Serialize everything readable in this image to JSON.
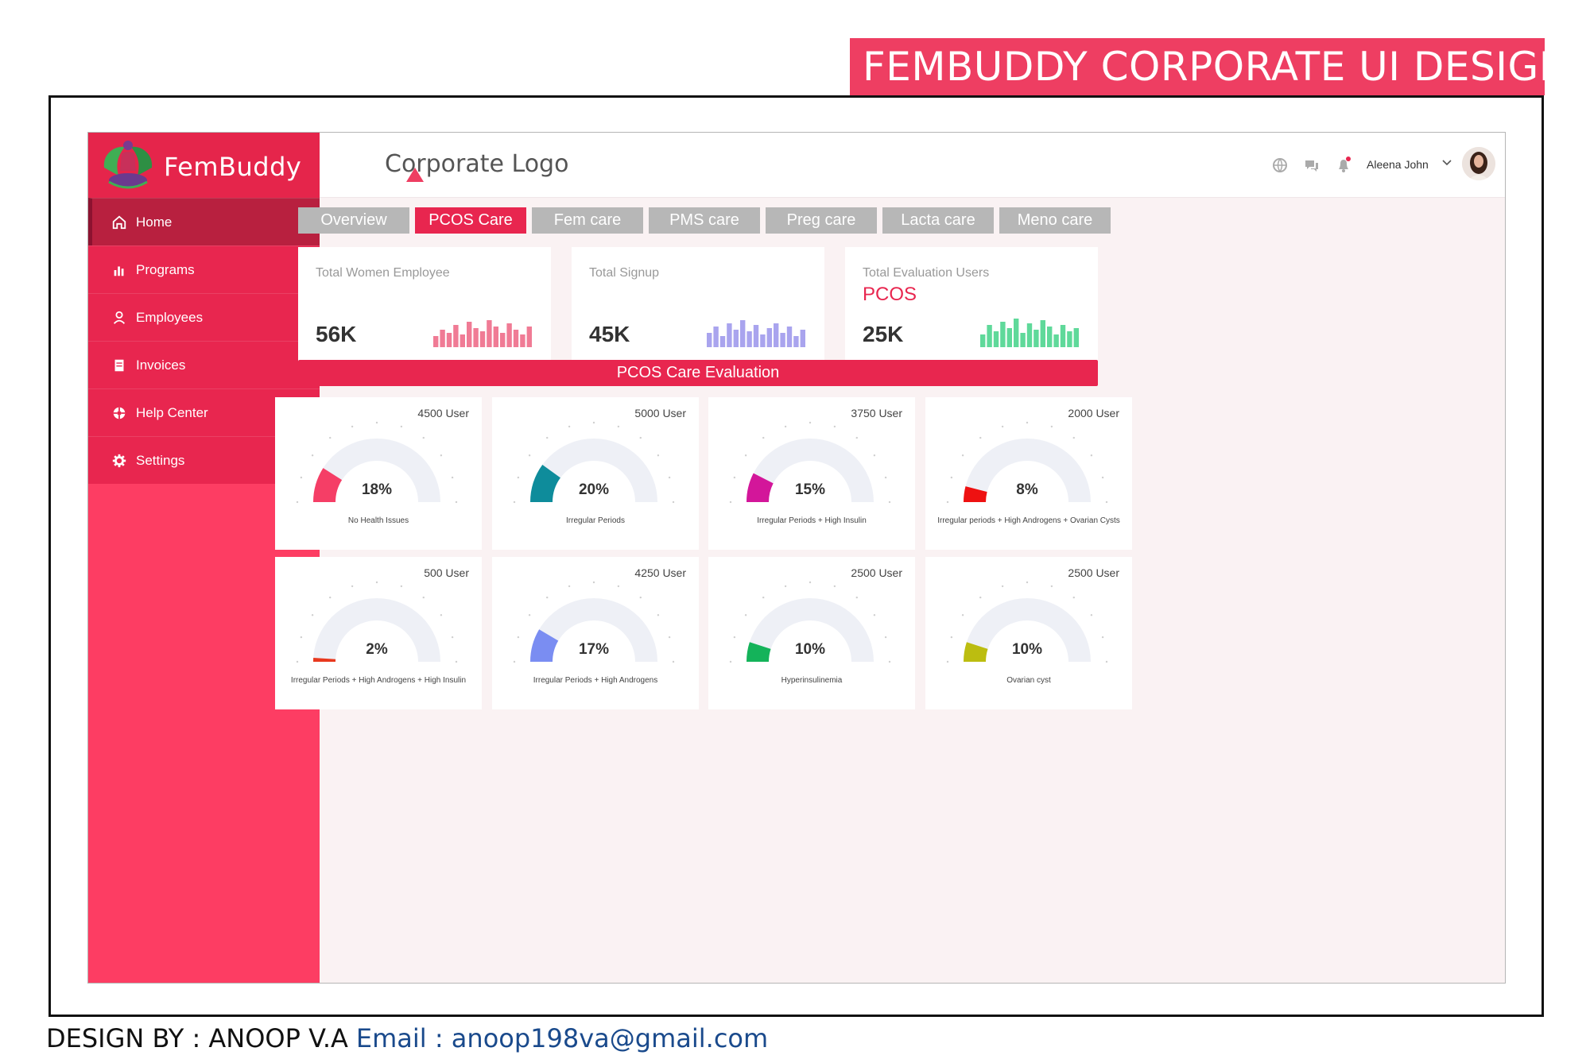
{
  "banner": {
    "title": "FEMBUDDY CORPORATE  UI DESIGN"
  },
  "brand": {
    "name": "FemBuddy"
  },
  "sidebar": {
    "items": [
      {
        "label": "Home",
        "icon": "home-icon",
        "active": true
      },
      {
        "label": "Programs",
        "icon": "bar-chart-icon",
        "active": false
      },
      {
        "label": "Employees",
        "icon": "user-icon",
        "active": false
      },
      {
        "label": "Invoices",
        "icon": "invoice-icon",
        "active": false
      },
      {
        "label": "Help Center",
        "icon": "help-icon",
        "active": false
      },
      {
        "label": "Settings",
        "icon": "gear-icon",
        "active": false
      }
    ]
  },
  "topbar": {
    "corporate_logo": "Corporate Logo",
    "user_name": "Aleena John",
    "icons": [
      "globe-icon",
      "chat-icon",
      "bell-icon"
    ]
  },
  "tabs": [
    {
      "label": "Overview",
      "active": false
    },
    {
      "label": "PCOS Care",
      "active": true
    },
    {
      "label": "Fem care",
      "active": false
    },
    {
      "label": "PMS care",
      "active": false
    },
    {
      "label": "Preg care",
      "active": false
    },
    {
      "label": "Lacta care",
      "active": false
    },
    {
      "label": "Meno care",
      "active": false
    }
  ],
  "stats": [
    {
      "label": "Total Women Employee",
      "sub": "",
      "value": "56K",
      "color": "#f07b95"
    },
    {
      "label": "Total Signup",
      "sub": "",
      "value": "45K",
      "color": "#a9a4ee"
    },
    {
      "label": "Total Evaluation Users",
      "sub": "PCOS",
      "value": "25K",
      "color": "#5fd99a"
    }
  ],
  "evaluation": {
    "title": "PCOS Care Evaluation"
  },
  "gauges": [
    {
      "users": "4500 User",
      "percent": 18,
      "pct_label": "18%",
      "label": "No Health Issues",
      "color": "#f53e66"
    },
    {
      "users": "5000 User",
      "percent": 20,
      "pct_label": "20%",
      "label": "Irregular Periods",
      "color": "#0e8c9b"
    },
    {
      "users": "3750 User",
      "percent": 15,
      "pct_label": "15%",
      "label": "Irregular Periods + High Insulin",
      "color": "#d3169a"
    },
    {
      "users": "2000 User",
      "percent": 8,
      "pct_label": "8%",
      "label": "Irregular periods + High Androgens + Ovarian Cysts",
      "color": "#ee1111"
    },
    {
      "users": "500 User",
      "percent": 2,
      "pct_label": "2%",
      "label": "Irregular Periods + High Androgens + High Insulin",
      "color": "#e8391e"
    },
    {
      "users": "4250 User",
      "percent": 17,
      "pct_label": "17%",
      "label": "Irregular Periods + High Androgens",
      "color": "#7a8df2"
    },
    {
      "users": "2500 User",
      "percent": 10,
      "pct_label": "10%",
      "label": "Hyperinsulinemia",
      "color": "#14b35a"
    },
    {
      "users": "2500 User",
      "percent": 10,
      "pct_label": "10%",
      "label": "Ovarian cyst",
      "color": "#bcbd10"
    }
  ],
  "footer": {
    "designer": "DESIGN BY : ANOOP V.A",
    "email": "Email : anoop198va@gmail.com"
  }
}
